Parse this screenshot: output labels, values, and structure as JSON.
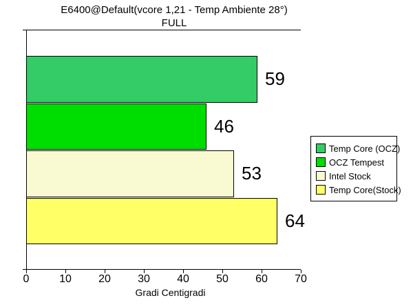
{
  "chart_data": {
    "type": "bar",
    "orientation": "horizontal",
    "title": "E6400@Default(vcore 1,21 - Temp Ambiente 28°)",
    "subtitle": "FULL",
    "xlabel": "Gradi Centigradi",
    "xlim": [
      0,
      70
    ],
    "xticks": [
      0,
      10,
      20,
      30,
      40,
      50,
      60,
      70
    ],
    "grid": false,
    "legend_position": "right",
    "bar_border_color": "#000000",
    "axis_color": "#000000",
    "background_color": "#FFFFFF",
    "series": [
      {
        "name": "Temp Core (OCZ)",
        "value": 59,
        "color": "#33CC66"
      },
      {
        "name": "OCZ Tempest",
        "value": 46,
        "color": "#00DD00"
      },
      {
        "name": "Intel Stock",
        "value": 53,
        "color": "#FAFAD2"
      },
      {
        "name": "Temp Core(Stock)",
        "value": 64,
        "color": "#FFFF66"
      }
    ]
  }
}
